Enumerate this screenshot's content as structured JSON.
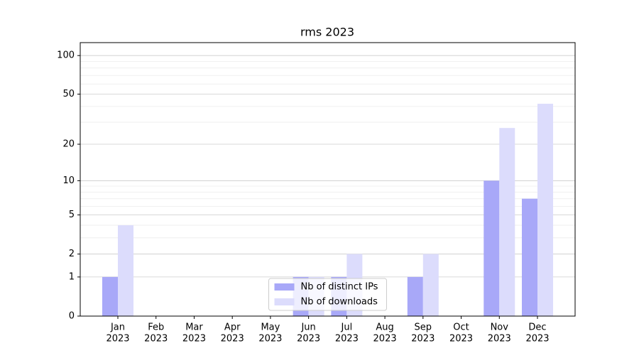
{
  "chart_data": {
    "type": "bar",
    "title": "rms 2023",
    "categories": [
      [
        "Jan",
        "2023"
      ],
      [
        "Feb",
        "2023"
      ],
      [
        "Mar",
        "2023"
      ],
      [
        "Apr",
        "2023"
      ],
      [
        "May",
        "2023"
      ],
      [
        "Jun",
        "2023"
      ],
      [
        "Jul",
        "2023"
      ],
      [
        "Aug",
        "2023"
      ],
      [
        "Sep",
        "2023"
      ],
      [
        "Oct",
        "2023"
      ],
      [
        "Nov",
        "2023"
      ],
      [
        "Dec",
        "2023"
      ]
    ],
    "series": [
      {
        "name": "Nb of distinct IPs",
        "color": "#a8a8f8",
        "values": [
          1,
          0,
          0,
          0,
          0,
          1,
          1,
          0,
          1,
          0,
          10,
          7
        ]
      },
      {
        "name": "Nb of downloads",
        "color": "#dcdcfc",
        "values": [
          4,
          0,
          0,
          0,
          0,
          1,
          2,
          0,
          2,
          0,
          27,
          42
        ]
      }
    ],
    "yscale": "log1p",
    "ylim": [
      0,
      126
    ],
    "yticks": [
      0,
      1,
      2,
      5,
      10,
      20,
      50,
      100
    ],
    "minor_yticks": [
      3,
      4,
      6,
      7,
      8,
      9,
      30,
      40,
      60,
      70,
      80,
      90
    ],
    "grid": true,
    "legend": "lower center"
  }
}
